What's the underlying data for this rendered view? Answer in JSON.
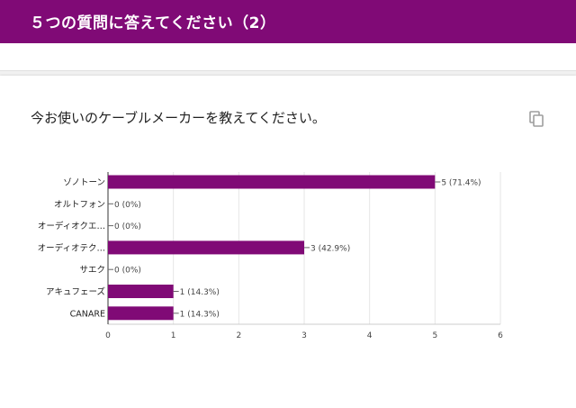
{
  "header": {
    "title": "５つの質問に答えてください（2）"
  },
  "question": {
    "text": "今お使いのケーブルメーカーを教えてください。",
    "copy_icon": "copy-icon"
  },
  "colors": {
    "header_bg": "#800a76",
    "bar": "#800a76",
    "axis_text": "#444444",
    "grid": "#e6e6e6"
  },
  "chart_data": {
    "type": "bar",
    "orientation": "horizontal",
    "categories": [
      "ゾノトーン",
      "オルトフォン",
      "オーディオクエ…",
      "オーディオテク…",
      "サエク",
      "アキュフェーズ",
      "CANARE"
    ],
    "values": [
      5,
      0,
      0,
      3,
      0,
      1,
      1
    ],
    "value_labels": [
      "5 (71.4%)",
      "0 (0%)",
      "0 (0%)",
      "3 (42.9%)",
      "0 (0%)",
      "1 (14.3%)",
      "1 (14.3%)"
    ],
    "xlim": [
      0,
      6
    ],
    "xticks": [
      "0",
      "1",
      "2",
      "3",
      "4",
      "5",
      "6"
    ],
    "grid": true,
    "title": "",
    "xlabel": "",
    "ylabel": ""
  }
}
